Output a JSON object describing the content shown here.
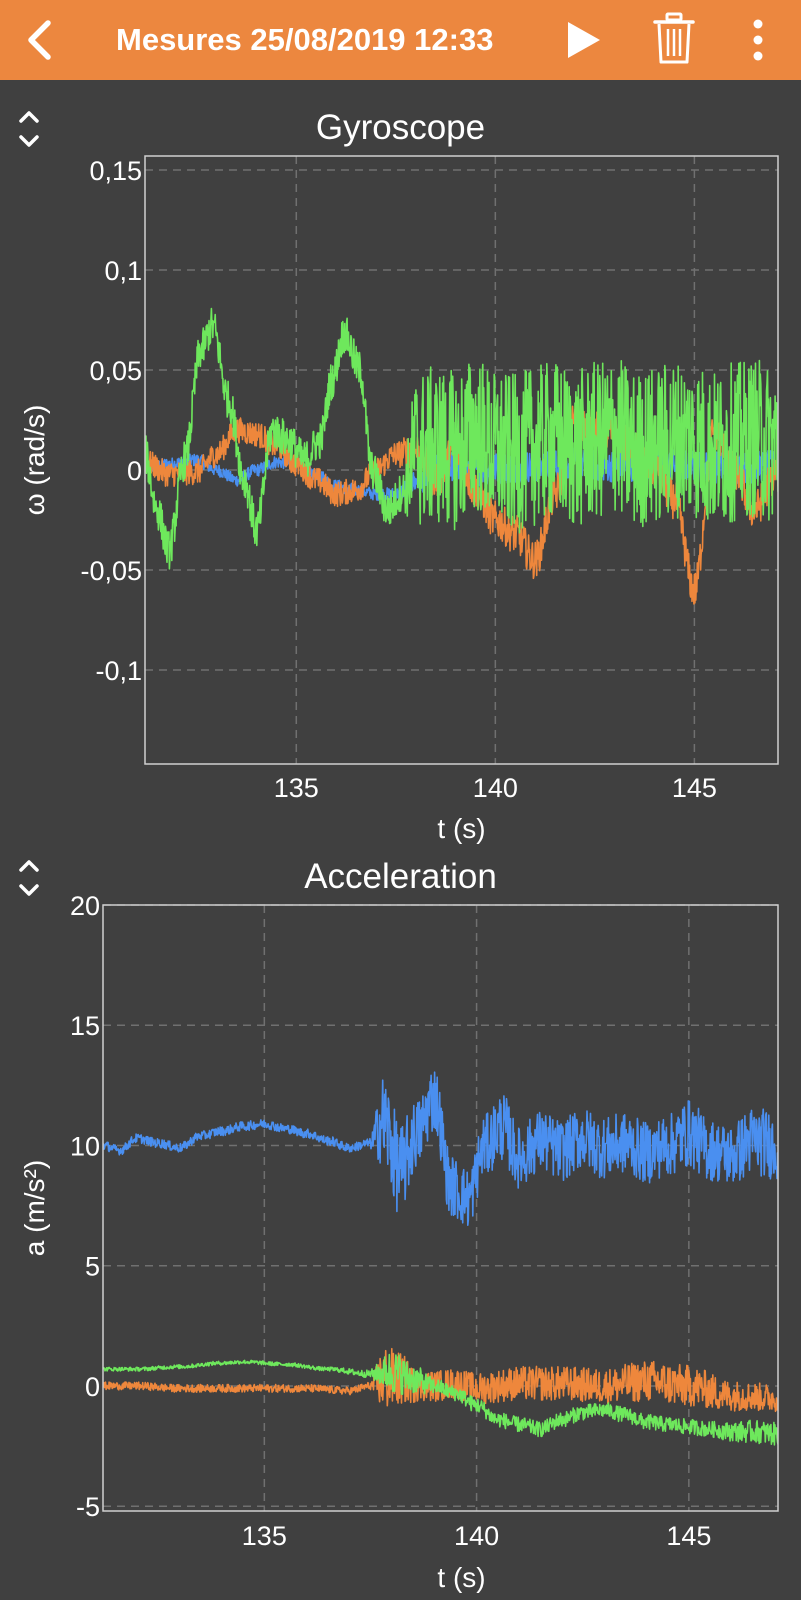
{
  "header": {
    "title": "Mesures 25/08/2019 12:33",
    "colors": {
      "bar": "#ec873f",
      "icon": "#ffffff"
    },
    "icons": {
      "back": "chevron-left-icon",
      "play": "play-icon",
      "delete": "trash-icon",
      "more": "more-vertical-icon"
    }
  },
  "colors": {
    "background": "#404040",
    "plot_frame": "#d0d0d0",
    "grid": "#707070",
    "series_blue": "#4a8ff0",
    "series_orange": "#ee873c",
    "series_green": "#6ee85c"
  },
  "chart_data": [
    {
      "type": "line",
      "title": "Gyroscope",
      "xlabel": "t (s)",
      "ylabel": "ω (rad/s)",
      "xlim": [
        131.2,
        147.1
      ],
      "ylim": [
        -0.147,
        0.157
      ],
      "xticks": [
        135,
        140,
        145
      ],
      "xtick_labels": [
        "135",
        "140",
        "145"
      ],
      "yticks": [
        0.15,
        0.1,
        0.05,
        0,
        -0.05,
        -0.1
      ],
      "ytick_labels": [
        "0,15",
        "0,1",
        "0,05",
        "0",
        "-0,05",
        "-0,1"
      ],
      "grid": true,
      "series": [
        {
          "color": "#4a8ff0",
          "x": [
            131.2,
            131.8,
            132.5,
            133.0,
            133.5,
            134.0,
            134.5,
            135.0,
            135.5,
            136.0,
            136.5,
            137.0,
            137.5,
            138.0,
            138.5,
            139.0,
            139.5,
            140.0,
            141.0,
            142.0,
            143.0,
            144.0,
            145.0,
            146.0,
            147.1
          ],
          "y": [
            0.001,
            0.003,
            0.005,
            0.0,
            -0.005,
            0.0,
            0.004,
            0.003,
            -0.002,
            -0.008,
            -0.01,
            -0.012,
            -0.012,
            -0.006,
            0.0,
            0.002,
            0.0,
            0.001,
            0.002,
            0.003,
            0.002,
            0.003,
            0.002,
            0.001,
            0.002
          ],
          "noise": [
            0.002,
            0.002,
            0.002,
            0.002,
            0.002,
            0.002,
            0.002,
            0.002,
            0.002,
            0.002,
            0.002,
            0.002,
            0.002,
            0.004,
            0.005,
            0.005,
            0.005,
            0.005,
            0.005,
            0.005,
            0.005,
            0.005,
            0.005,
            0.005,
            0.005
          ]
        },
        {
          "color": "#ee873c",
          "x": [
            131.2,
            131.8,
            132.5,
            133.0,
            133.5,
            134.0,
            134.5,
            135.0,
            135.5,
            136.0,
            136.5,
            137.0,
            137.5,
            138.0,
            138.5,
            139.0,
            139.5,
            140.0,
            140.5,
            141.0,
            141.5,
            142.0,
            142.5,
            143.0,
            143.5,
            144.0,
            144.5,
            145.0,
            145.5,
            146.0,
            146.5,
            147.1
          ],
          "y": [
            0.004,
            -0.002,
            -0.001,
            0.008,
            0.02,
            0.018,
            0.012,
            0.003,
            -0.005,
            -0.012,
            -0.01,
            0.0,
            0.008,
            0.01,
            -0.005,
            0.01,
            -0.01,
            -0.025,
            -0.032,
            -0.045,
            -0.012,
            0.025,
            0.02,
            0.018,
            0.01,
            0.0,
            -0.015,
            -0.06,
            0.02,
            0.0,
            -0.02,
            0.0
          ],
          "noise": [
            0.004,
            0.004,
            0.004,
            0.004,
            0.004,
            0.004,
            0.004,
            0.004,
            0.004,
            0.004,
            0.004,
            0.004,
            0.004,
            0.006,
            0.006,
            0.006,
            0.006,
            0.006,
            0.006,
            0.006,
            0.006,
            0.006,
            0.006,
            0.006,
            0.006,
            0.006,
            0.006,
            0.006,
            0.006,
            0.006,
            0.006,
            0.006
          ]
        },
        {
          "color": "#6ee85c",
          "x": [
            131.2,
            131.5,
            131.8,
            132.2,
            132.6,
            132.9,
            133.3,
            133.7,
            134.0,
            134.4,
            134.8,
            135.2,
            135.6,
            135.9,
            136.2,
            136.6,
            136.9,
            137.3,
            137.7,
            138.0,
            138.5,
            139.0,
            139.5,
            140.0,
            140.5,
            141.0,
            141.5,
            142.0,
            142.5,
            143.0,
            143.5,
            144.0,
            144.5,
            145.0,
            145.5,
            146.0,
            146.5,
            147.1
          ],
          "y": [
            0.008,
            -0.02,
            -0.04,
            0.005,
            0.06,
            0.072,
            0.035,
            -0.005,
            -0.03,
            0.02,
            0.015,
            0.005,
            0.015,
            0.045,
            0.068,
            0.05,
            0.0,
            -0.02,
            -0.01,
            0.01,
            0.012,
            0.01,
            0.018,
            0.01,
            0.008,
            0.012,
            0.015,
            0.01,
            0.014,
            0.018,
            0.01,
            0.012,
            0.016,
            0.015,
            0.01,
            0.014,
            0.016,
            0.012
          ],
          "noise": [
            0.006,
            0.006,
            0.006,
            0.006,
            0.006,
            0.006,
            0.006,
            0.006,
            0.006,
            0.006,
            0.006,
            0.006,
            0.006,
            0.006,
            0.006,
            0.006,
            0.006,
            0.006,
            0.006,
            0.025,
            0.025,
            0.025,
            0.025,
            0.025,
            0.025,
            0.025,
            0.025,
            0.025,
            0.025,
            0.025,
            0.025,
            0.025,
            0.025,
            0.025,
            0.025,
            0.025,
            0.025,
            0.025
          ]
        }
      ]
    },
    {
      "type": "line",
      "title": "Acceleration",
      "xlabel": "t (s)",
      "ylabel": "a (m/s²)",
      "xlim": [
        131.2,
        147.1
      ],
      "ylim": [
        -5.2,
        20.0
      ],
      "xticks": [
        135,
        140,
        145
      ],
      "xtick_labels": [
        "135",
        "140",
        "145"
      ],
      "yticks": [
        20,
        15,
        10,
        5,
        0,
        -5
      ],
      "ytick_labels": [
        "20",
        "15",
        "10",
        "5",
        "0",
        "-5"
      ],
      "grid": true,
      "series": [
        {
          "color": "#4a8ff0",
          "x": [
            131.2,
            131.6,
            132.0,
            132.5,
            133.0,
            133.5,
            134.0,
            134.5,
            135.0,
            135.5,
            136.0,
            136.5,
            137.0,
            137.5,
            137.8,
            138.2,
            138.6,
            139.0,
            139.4,
            139.8,
            140.2,
            140.6,
            141.0,
            141.5,
            142.0,
            142.5,
            143.0,
            143.5,
            144.0,
            144.5,
            145.0,
            145.5,
            146.0,
            146.5,
            147.1
          ],
          "y": [
            10.0,
            9.8,
            10.3,
            10.1,
            9.9,
            10.4,
            10.6,
            10.8,
            10.9,
            10.7,
            10.5,
            10.2,
            9.9,
            10.1,
            11.0,
            9.0,
            10.5,
            12.0,
            8.3,
            7.8,
            10.0,
            10.8,
            9.5,
            10.2,
            9.8,
            10.3,
            9.9,
            10.1,
            9.7,
            10.0,
            10.5,
            9.8,
            9.6,
            10.2,
            10.0
          ],
          "noise": [
            0.12,
            0.12,
            0.12,
            0.12,
            0.12,
            0.12,
            0.12,
            0.12,
            0.12,
            0.12,
            0.12,
            0.12,
            0.12,
            0.12,
            1.3,
            1.2,
            0.9,
            0.9,
            0.8,
            0.8,
            0.8,
            0.9,
            0.8,
            0.8,
            0.8,
            0.8,
            0.8,
            0.8,
            0.8,
            0.8,
            0.9,
            0.8,
            0.8,
            0.9,
            0.9
          ]
        },
        {
          "color": "#ee873c",
          "x": [
            131.2,
            132.0,
            133.0,
            134.0,
            135.0,
            136.0,
            137.0,
            137.5,
            137.8,
            138.2,
            138.6,
            139.0,
            139.5,
            140.0,
            141.0,
            142.0,
            143.0,
            144.0,
            145.0,
            146.0,
            147.1
          ],
          "y": [
            0.0,
            0.0,
            -0.1,
            -0.1,
            -0.1,
            -0.1,
            -0.2,
            0.0,
            0.3,
            0.3,
            0.0,
            0.0,
            0.1,
            -0.1,
            0.1,
            0.1,
            0.0,
            0.2,
            0.0,
            -0.4,
            -0.5
          ],
          "noise": [
            0.1,
            0.1,
            0.1,
            0.1,
            0.1,
            0.1,
            0.1,
            0.1,
            0.9,
            0.7,
            0.4,
            0.4,
            0.4,
            0.4,
            0.45,
            0.45,
            0.45,
            0.55,
            0.55,
            0.4,
            0.35
          ]
        },
        {
          "color": "#6ee85c",
          "x": [
            131.2,
            132.0,
            133.0,
            134.0,
            134.5,
            135.5,
            136.5,
            137.5,
            138.0,
            138.5,
            139.0,
            139.5,
            140.0,
            140.5,
            141.0,
            141.5,
            142.0,
            142.5,
            143.0,
            143.5,
            144.0,
            144.5,
            145.0,
            145.5,
            146.0,
            146.5,
            147.1
          ],
          "y": [
            0.7,
            0.7,
            0.8,
            0.95,
            1.0,
            0.9,
            0.7,
            0.5,
            0.6,
            0.3,
            0.0,
            -0.3,
            -0.8,
            -1.4,
            -1.6,
            -1.8,
            -1.4,
            -1.1,
            -1.0,
            -1.2,
            -1.5,
            -1.6,
            -1.7,
            -1.8,
            -1.9,
            -1.9,
            -2.0
          ],
          "noise": [
            0.05,
            0.05,
            0.05,
            0.05,
            0.05,
            0.05,
            0.05,
            0.1,
            0.6,
            0.4,
            0.2,
            0.2,
            0.2,
            0.2,
            0.2,
            0.2,
            0.2,
            0.2,
            0.2,
            0.2,
            0.2,
            0.2,
            0.2,
            0.2,
            0.25,
            0.3,
            0.3
          ]
        }
      ]
    }
  ]
}
